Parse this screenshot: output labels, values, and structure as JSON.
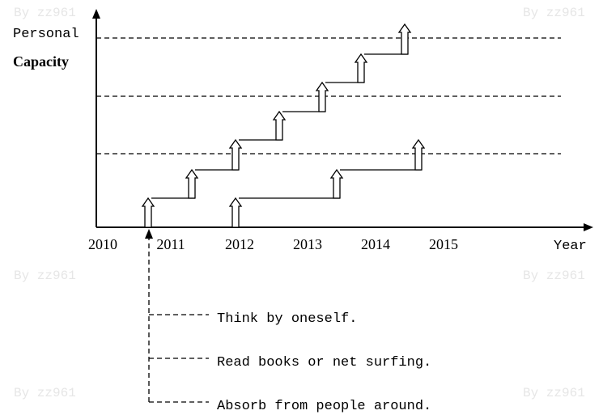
{
  "axis": {
    "y_label_line1": "Personal",
    "y_label_line2": "Capacity",
    "x_label": "Year",
    "years": [
      "2010",
      "2011",
      "2012",
      "2013",
      "2014",
      "2015"
    ]
  },
  "legend": [
    "Think by oneself.",
    "Read books or net surfing.",
    "Absorb from people around."
  ],
  "watermarks": [
    "By zz961",
    "By zz961",
    "By zz961",
    "By zz961",
    "By zz961",
    "By zz961"
  ]
}
